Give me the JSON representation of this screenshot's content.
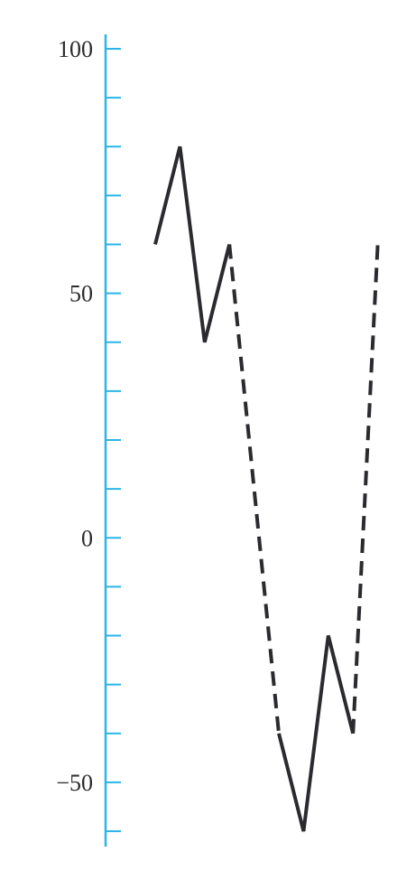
{
  "chart_data": {
    "type": "line",
    "title": "",
    "xlabel": "",
    "ylabel": "",
    "ylim": [
      -60,
      100
    ],
    "y_ticks": [
      100,
      90,
      80,
      70,
      60,
      50,
      40,
      30,
      20,
      10,
      0,
      -10,
      -20,
      -30,
      -40,
      -50,
      -60
    ],
    "y_tick_labels": [
      {
        "value": 100,
        "label": "100"
      },
      {
        "value": 50,
        "label": "50"
      },
      {
        "value": 0,
        "label": "0"
      },
      {
        "value": -50,
        "label": "−50"
      }
    ],
    "grid": false,
    "x_axis_visible": false,
    "series": [
      {
        "style": "solid",
        "points": [
          {
            "x": 0,
            "y": 60
          },
          {
            "x": 1,
            "y": 80
          },
          {
            "x": 2,
            "y": 40
          },
          {
            "x": 3,
            "y": 60
          }
        ]
      },
      {
        "style": "dashed",
        "points": [
          {
            "x": 3,
            "y": 60
          },
          {
            "x": 5,
            "y": -40
          }
        ]
      },
      {
        "style": "solid",
        "points": [
          {
            "x": 5,
            "y": -40
          },
          {
            "x": 6,
            "y": -60
          },
          {
            "x": 7,
            "y": -20
          },
          {
            "x": 8,
            "y": -40
          }
        ]
      },
      {
        "style": "dashed",
        "points": [
          {
            "x": 8,
            "y": -40
          },
          {
            "x": 9,
            "y": 60
          }
        ]
      }
    ],
    "colors": {
      "axis": "#2bb5e6",
      "line": "#2b2b2f",
      "text": "#2b2b2b"
    }
  }
}
